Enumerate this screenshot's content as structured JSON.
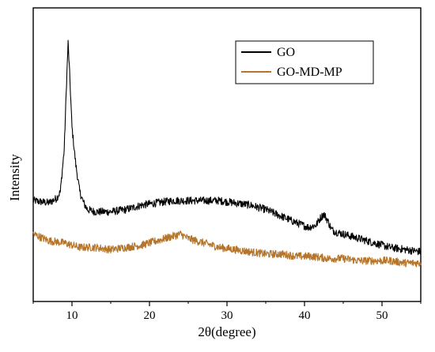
{
  "chart_data": {
    "type": "line",
    "xlabel": "2θ(degree)",
    "ylabel": "Intensity",
    "xlim": [
      5,
      55
    ],
    "xticks": [
      10,
      20,
      30,
      40,
      50
    ],
    "y_tick_labels": false,
    "grid": false,
    "legend": {
      "placement": "top-right"
    },
    "series": [
      {
        "name": "GO",
        "color": "#000000",
        "x": [
          5,
          7,
          8,
          8.5,
          9,
          9.3,
          9.5,
          9.7,
          10,
          10.5,
          11,
          11.5,
          12,
          13,
          15,
          17,
          19,
          21,
          23,
          25,
          27,
          29,
          31,
          33,
          35,
          37,
          39,
          40.5,
          41.5,
          42,
          42.5,
          43,
          43.5,
          44,
          45,
          47,
          49,
          51,
          53,
          55
        ],
        "values": [
          0.29,
          0.28,
          0.3,
          0.33,
          0.52,
          0.82,
          1.0,
          0.86,
          0.62,
          0.45,
          0.33,
          0.28,
          0.25,
          0.24,
          0.24,
          0.25,
          0.27,
          0.28,
          0.29,
          0.29,
          0.29,
          0.29,
          0.28,
          0.27,
          0.25,
          0.22,
          0.19,
          0.17,
          0.18,
          0.21,
          0.23,
          0.2,
          0.16,
          0.15,
          0.14,
          0.12,
          0.1,
          0.08,
          0.07,
          0.06
        ]
      },
      {
        "name": "GO-MD-MP",
        "color": "#b5762c",
        "x": [
          5,
          7,
          9,
          11,
          13,
          15,
          17,
          19,
          21,
          23,
          24,
          25,
          27,
          29,
          31,
          33,
          35,
          37,
          39,
          41,
          43,
          45,
          47,
          49,
          51,
          53,
          55
        ],
        "values": [
          0.14,
          0.11,
          0.1,
          0.08,
          0.08,
          0.07,
          0.08,
          0.09,
          0.11,
          0.13,
          0.14,
          0.12,
          0.1,
          0.08,
          0.07,
          0.06,
          0.05,
          0.05,
          0.04,
          0.04,
          0.03,
          0.03,
          0.02,
          0.02,
          0.02,
          0.01,
          0.01
        ]
      }
    ]
  }
}
